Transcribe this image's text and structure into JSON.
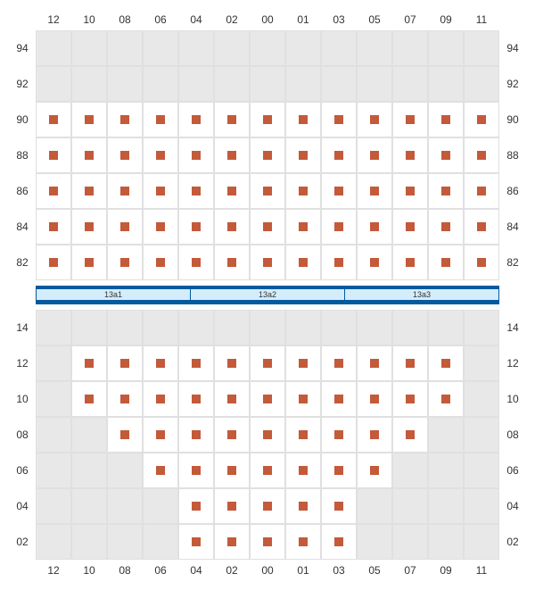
{
  "layout": {
    "col_labels": [
      "12",
      "10",
      "08",
      "06",
      "04",
      "02",
      "00",
      "01",
      "03",
      "05",
      "07",
      "09",
      "11"
    ],
    "top_block": {
      "row_labels": [
        "94",
        "92",
        "90",
        "88",
        "86",
        "84",
        "82"
      ],
      "rows": [
        [
          0,
          0,
          0,
          0,
          0,
          0,
          0,
          0,
          0,
          0,
          0,
          0,
          0
        ],
        [
          0,
          0,
          0,
          0,
          0,
          0,
          0,
          0,
          0,
          0,
          0,
          0,
          0
        ],
        [
          1,
          1,
          1,
          1,
          1,
          1,
          1,
          1,
          1,
          1,
          1,
          1,
          1
        ],
        [
          1,
          1,
          1,
          1,
          1,
          1,
          1,
          1,
          1,
          1,
          1,
          1,
          1
        ],
        [
          1,
          1,
          1,
          1,
          1,
          1,
          1,
          1,
          1,
          1,
          1,
          1,
          1
        ],
        [
          1,
          1,
          1,
          1,
          1,
          1,
          1,
          1,
          1,
          1,
          1,
          1,
          1
        ],
        [
          1,
          1,
          1,
          1,
          1,
          1,
          1,
          1,
          1,
          1,
          1,
          1,
          1
        ]
      ]
    },
    "divider_labels": [
      "13a1",
      "13a2",
      "13a3"
    ],
    "bottom_block": {
      "row_labels": [
        "14",
        "12",
        "10",
        "08",
        "06",
        "04",
        "02"
      ],
      "rows": [
        [
          0,
          0,
          0,
          0,
          0,
          0,
          0,
          0,
          0,
          0,
          0,
          0,
          0
        ],
        [
          0,
          1,
          1,
          1,
          1,
          1,
          1,
          1,
          1,
          1,
          1,
          1,
          0
        ],
        [
          0,
          1,
          1,
          1,
          1,
          1,
          1,
          1,
          1,
          1,
          1,
          1,
          0
        ],
        [
          0,
          0,
          1,
          1,
          1,
          1,
          1,
          1,
          1,
          1,
          1,
          0,
          0
        ],
        [
          0,
          0,
          0,
          1,
          1,
          1,
          1,
          1,
          1,
          1,
          0,
          0,
          0
        ],
        [
          0,
          0,
          0,
          0,
          1,
          1,
          1,
          1,
          1,
          0,
          0,
          0,
          0
        ],
        [
          0,
          0,
          0,
          0,
          1,
          1,
          1,
          1,
          1,
          0,
          0,
          0,
          0
        ]
      ]
    }
  },
  "style": {
    "cell_size": 40,
    "empty_bg": "#e8e8e8",
    "occupied_bg": "#ffffff",
    "grid_border": "#e0e0e0",
    "marker_color": "#c35a3a",
    "marker_size": 10,
    "divider_color": "#035a9e",
    "divider_fill": "#d4ecfb",
    "label_fontsize": 12,
    "label_color": "#333333",
    "divider_label_fontsize": 9
  }
}
